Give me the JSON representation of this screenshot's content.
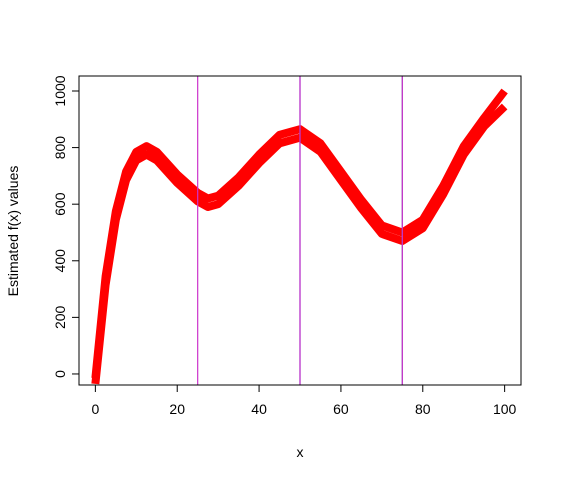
{
  "chart_data": {
    "type": "line",
    "xlabel": "x",
    "ylabel": "Estimated f(x) values",
    "x": [
      0,
      2.5,
      5,
      7.5,
      10,
      12.5,
      15,
      20,
      25,
      27.5,
      30,
      35,
      40,
      45,
      50,
      55,
      60,
      65,
      70,
      75,
      80,
      85,
      90,
      95,
      100
    ],
    "series": [
      {
        "color": "#ff0000",
        "values": [
          -35,
          315,
          545,
          685,
          755,
          775,
          755,
          675,
          610,
          590,
          600,
          665,
          745,
          815,
          835,
          785,
          685,
          585,
          495,
          470,
          515,
          635,
          775,
          875,
          945
        ]
      },
      {
        "color": "#ff0000",
        "values": [
          -15,
          345,
          575,
          715,
          785,
          805,
          785,
          705,
          640,
          620,
          630,
          695,
          775,
          845,
          865,
          815,
          715,
          615,
          525,
          500,
          545,
          665,
          805,
          905,
          1000
        ]
      }
    ],
    "vlines": [
      {
        "x": 25,
        "color": "#cc33cc"
      },
      {
        "x": 50,
        "color": "#3366cc"
      },
      {
        "x": 50,
        "color": "#cc33cc"
      },
      {
        "x": 75,
        "color": "#336699"
      },
      {
        "x": 75,
        "color": "#cc33cc"
      }
    ],
    "xlim": [
      -4,
      104
    ],
    "ylim": [
      -39,
      1053
    ],
    "xticks": [
      0,
      20,
      40,
      60,
      80,
      100
    ],
    "yticks": [
      0,
      200,
      400,
      600,
      800,
      1000
    ]
  }
}
